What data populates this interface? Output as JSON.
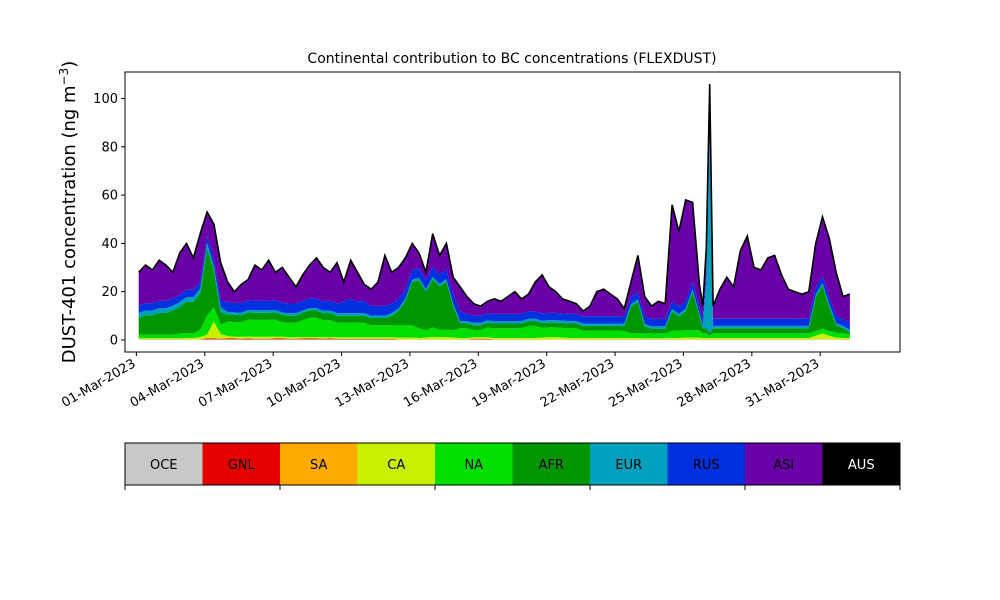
{
  "chart_data": {
    "type": "area",
    "stacked": true,
    "title": "Continental contribution to BC concentrations (FLEXDUST)",
    "ylabel": "DUST-401 concentration (ng m",
    "ylabel_sup": "−3",
    "ylabel_close": ")",
    "xlabel": "",
    "ylim": [
      -5,
      111
    ],
    "xlim": [
      -0.5,
      33.5
    ],
    "y_ticks": [
      0,
      20,
      40,
      60,
      80,
      100
    ],
    "x_ticks": [
      {
        "x": 0,
        "label": "01-Mar-2023"
      },
      {
        "x": 3,
        "label": "04-Mar-2023"
      },
      {
        "x": 6,
        "label": "07-Mar-2023"
      },
      {
        "x": 9,
        "label": "10-Mar-2023"
      },
      {
        "x": 12,
        "label": "13-Mar-2023"
      },
      {
        "x": 15,
        "label": "16-Mar-2023"
      },
      {
        "x": 18,
        "label": "19-Mar-2023"
      },
      {
        "x": 21,
        "label": "22-Mar-2023"
      },
      {
        "x": 24,
        "label": "25-Mar-2023"
      },
      {
        "x": 27,
        "label": "28-Mar-2023"
      },
      {
        "x": 30,
        "label": "31-Mar-2023"
      }
    ],
    "x_days": [
      0.1,
      0.4,
      0.7,
      1.0,
      1.3,
      1.6,
      1.9,
      2.2,
      2.5,
      2.8,
      3.1,
      3.4,
      3.7,
      4.0,
      4.3,
      4.6,
      4.9,
      5.2,
      5.5,
      5.8,
      6.1,
      6.4,
      6.7,
      7.0,
      7.3,
      7.6,
      7.9,
      8.2,
      8.5,
      8.8,
      9.1,
      9.4,
      9.7,
      10.0,
      10.3,
      10.6,
      10.9,
      11.2,
      11.5,
      11.8,
      12.1,
      12.4,
      12.7,
      13.0,
      13.3,
      13.6,
      13.9,
      14.2,
      14.5,
      14.8,
      15.1,
      15.4,
      15.7,
      16.0,
      16.3,
      16.6,
      16.9,
      17.2,
      17.5,
      17.8,
      18.1,
      18.4,
      18.7,
      19.0,
      19.3,
      19.6,
      19.9,
      20.2,
      20.5,
      20.8,
      21.1,
      21.4,
      21.7,
      22.0,
      22.3,
      22.6,
      22.9,
      23.2,
      23.5,
      23.8,
      24.1,
      24.4,
      24.7,
      24.85,
      25.0,
      25.15,
      25.3,
      25.6,
      25.9,
      26.2,
      26.5,
      26.8,
      27.1,
      27.4,
      27.7,
      28.0,
      28.3,
      28.6,
      28.9,
      29.2,
      29.5,
      29.8,
      30.1,
      30.4,
      30.7,
      31.0,
      31.3
    ],
    "totals": [
      28,
      31,
      29,
      33,
      31,
      28,
      36,
      40,
      34,
      44,
      53,
      48,
      32,
      24,
      20,
      23,
      25,
      31,
      29,
      33,
      28,
      30,
      26,
      22,
      27,
      31,
      34,
      30,
      28,
      32,
      24,
      33,
      28,
      23,
      21,
      24,
      35,
      28,
      30,
      34,
      40,
      36,
      28,
      44,
      35,
      40,
      26,
      22,
      18,
      15,
      14,
      16,
      17,
      16,
      18,
      20,
      17,
      19,
      24,
      27,
      22,
      20,
      17,
      16,
      15,
      12,
      14,
      20,
      21,
      19,
      17,
      13,
      24,
      35,
      18,
      14,
      16,
      15,
      56,
      45,
      58,
      57,
      23,
      14,
      38,
      106,
      14,
      21,
      26,
      22,
      37,
      43,
      30,
      29,
      34,
      35,
      27,
      21,
      20,
      19,
      20,
      40,
      51,
      42,
      28,
      18,
      19
    ],
    "series": [
      {
        "name": "OCE",
        "color": "#c8c8c8",
        "values": [
          0.2,
          0.2,
          0.2,
          0.2,
          0.2,
          0.2,
          0.2,
          0.2,
          0.2,
          0.2,
          0.2,
          0.2,
          0.2,
          0.2,
          0.2,
          0.2,
          0.2,
          0.2,
          0.2,
          0.2,
          0.2,
          0.2,
          0.2,
          0.2,
          0.2,
          0.2,
          0.2,
          0.2,
          0.2,
          0.2,
          0.2,
          0.2,
          0.2,
          0.2,
          0.2,
          0.2,
          0.2,
          0.2,
          0.2,
          0.2,
          0.2,
          0.2,
          0.2,
          0.2,
          0.2,
          0.2,
          0.2,
          0.2,
          0.2,
          0.2,
          0.2,
          0.2,
          0.2,
          0.2,
          0.2,
          0.2,
          0.2,
          0.2,
          0.2,
          0.2,
          0.2,
          0.2,
          0.2,
          0.2,
          0.2,
          0.2,
          0.2,
          0.2,
          0.2,
          0.2,
          0.2,
          0.2,
          0.2,
          0.2,
          0.2,
          0.2,
          0.2,
          0.2,
          0.2,
          0.2,
          0.2,
          0.2,
          0.2,
          0.2,
          0.2,
          0.2,
          0.2,
          0.2,
          0.2,
          0.2,
          0.2,
          0.2,
          0.2,
          0.2,
          0.2,
          0.2,
          0.2,
          0.2,
          0.2,
          0.2,
          0.2,
          0.2,
          0.2,
          0.2,
          0.2,
          0.2,
          0.2
        ]
      },
      {
        "name": "GNL",
        "color": "#e60000",
        "values": [
          0,
          0,
          0,
          0,
          0,
          0,
          0,
          0,
          0,
          0,
          0.5,
          0.4,
          0.3,
          0.4,
          0.4,
          0.3,
          0.4,
          0.3,
          0.3,
          0.3,
          0.4,
          0.4,
          0.3,
          0.3,
          0.4,
          0.4,
          0.4,
          0.3,
          0.4,
          0.3,
          0.3,
          0.3,
          0.3,
          0.3,
          0.3,
          0.3,
          0.3,
          0.3,
          0,
          0,
          0,
          0,
          0,
          0,
          0,
          0,
          0,
          0,
          0,
          0.3,
          0.3,
          0.3,
          0,
          0,
          0,
          0,
          0,
          0,
          0,
          0,
          0,
          0,
          0,
          0,
          0,
          0,
          0,
          0,
          0,
          0,
          0,
          0,
          0,
          0,
          0,
          0,
          0,
          0,
          0,
          0,
          0,
          0,
          0,
          0,
          0,
          0,
          0,
          0,
          0,
          0,
          0,
          0,
          0,
          0,
          0,
          0,
          0,
          0,
          0,
          0,
          0,
          0,
          0,
          0,
          0,
          0,
          0
        ]
      },
      {
        "name": "SA",
        "color": "#ffaa00",
        "values": [
          0,
          0,
          0,
          0,
          0,
          0,
          0,
          0,
          0,
          0,
          0,
          0,
          0,
          0,
          0,
          0,
          0,
          0,
          0,
          0,
          0,
          0,
          0,
          0,
          0,
          0,
          0,
          0,
          0,
          0,
          0,
          0,
          0,
          0,
          0,
          0,
          0,
          0,
          0,
          0,
          0,
          0,
          0,
          0,
          0,
          0,
          0,
          0,
          0,
          0,
          0,
          0,
          0,
          0,
          0,
          0,
          0,
          0,
          0,
          0,
          0,
          0,
          0,
          0,
          0,
          0,
          0,
          0,
          0,
          0,
          0,
          0,
          0,
          0,
          0,
          0,
          0,
          0,
          0,
          0,
          0,
          0,
          0,
          0,
          0,
          0,
          0,
          0,
          0,
          0,
          0,
          0,
          0,
          0,
          0,
          0,
          0,
          0,
          0,
          0,
          0,
          0,
          0,
          0,
          0,
          0,
          0
        ]
      },
      {
        "name": "CA",
        "color": "#c8f000",
        "values": [
          0.5,
          0.5,
          0.5,
          0.5,
          0.5,
          0.5,
          0.5,
          0.6,
          0.6,
          1.0,
          1.5,
          7.0,
          2.0,
          1.0,
          0.8,
          0.8,
          0.8,
          0.8,
          0.8,
          0.8,
          0.8,
          0.8,
          0.6,
          0.6,
          0.6,
          0.6,
          0.6,
          0.6,
          0.6,
          0.6,
          0.6,
          0.6,
          0.6,
          0.6,
          0.6,
          0.6,
          0.6,
          0.6,
          0.8,
          0.8,
          0.8,
          0.6,
          0.8,
          1.0,
          1.0,
          1.0,
          0.8,
          0.6,
          0.6,
          0.6,
          0.6,
          0.6,
          0.6,
          0.6,
          0.6,
          0.6,
          0.6,
          0.6,
          0.6,
          0.8,
          1.0,
          1.0,
          0.8,
          0.6,
          0.6,
          0.6,
          0.6,
          0.6,
          0.6,
          0.6,
          0.6,
          0.5,
          0.6,
          0.6,
          0.5,
          0.5,
          0.5,
          0.5,
          0.6,
          0.6,
          0.8,
          0.8,
          0.8,
          0.6,
          0.6,
          0.6,
          0.6,
          0.6,
          0.6,
          0.6,
          0.6,
          0.6,
          0.6,
          0.6,
          0.6,
          0.6,
          0.6,
          0.6,
          0.6,
          0.6,
          0.6,
          1.5,
          2.5,
          1.5,
          0.8,
          0.6,
          0.6
        ]
      },
      {
        "name": "NA",
        "color": "#00e000",
        "values": [
          1.5,
          1.5,
          1.5,
          1.5,
          1.5,
          1.5,
          2.0,
          2.0,
          2.0,
          3.0,
          8.0,
          6.0,
          4.0,
          6.0,
          6.0,
          6.0,
          7.0,
          7.0,
          7.0,
          7.0,
          7.0,
          6.0,
          6.0,
          6.0,
          7.0,
          8.0,
          8.0,
          7.0,
          7.0,
          6.0,
          6.0,
          6.0,
          6.0,
          6.0,
          5.0,
          5.0,
          5.0,
          5.0,
          5.0,
          5.0,
          5.0,
          4.0,
          3.0,
          4.0,
          3.0,
          3.0,
          3.0,
          4.0,
          4.0,
          3.0,
          3.0,
          4.0,
          4.0,
          4.0,
          4.0,
          4.0,
          4.0,
          5.0,
          5.0,
          4.0,
          4.0,
          4.0,
          4.0,
          4.0,
          4.0,
          3.0,
          3.0,
          3.0,
          3.0,
          3.0,
          3.0,
          3.0,
          2.0,
          2.0,
          2.0,
          2.0,
          2.0,
          2.0,
          3.0,
          3.0,
          3.0,
          3.0,
          3.0,
          2.0,
          2.0,
          1.0,
          2.0,
          2.0,
          2.0,
          2.0,
          2.0,
          2.0,
          2.0,
          2.0,
          2.0,
          2.0,
          2.0,
          2.0,
          2.0,
          2.0,
          2.0,
          2.0,
          2.0,
          2.0,
          2.0,
          2.0,
          1.5
        ]
      },
      {
        "name": "AFR",
        "color": "#009600",
        "values": [
          7,
          8,
          8,
          9,
          9,
          10,
          11,
          13,
          13,
          15,
          28,
          15,
          5,
          3,
          3,
          3,
          3,
          3,
          3,
          3,
          3,
          3,
          3,
          3,
          3,
          3,
          3,
          3,
          3,
          3,
          3,
          3,
          3,
          3,
          3,
          3,
          3,
          4,
          6,
          10,
          18,
          20,
          16,
          20,
          18,
          20,
          10,
          2,
          2,
          2,
          2,
          2,
          2,
          2,
          2,
          2,
          2,
          2,
          2,
          2,
          2,
          2,
          2,
          2,
          2,
          2,
          2,
          2,
          2,
          2,
          2,
          2,
          11,
          13,
          3,
          2,
          2,
          2,
          8,
          6,
          8,
          16,
          6,
          2,
          2,
          1,
          2,
          2,
          2,
          2,
          2,
          2,
          2,
          2,
          2,
          2,
          2,
          2,
          2,
          2,
          2,
          14,
          18,
          10,
          3,
          2,
          1
        ]
      },
      {
        "name": "EUR",
        "color": "#00a0bf",
        "values": [
          2,
          2,
          2,
          2,
          2,
          2,
          2,
          2,
          2,
          2,
          2,
          2,
          2,
          1,
          1,
          1,
          1,
          1,
          1,
          1,
          1,
          1,
          1,
          1,
          1,
          1,
          1,
          1,
          1,
          1,
          1,
          1,
          1,
          1,
          1,
          1,
          1,
          1,
          1,
          1,
          1,
          1,
          1,
          1,
          1,
          1,
          1,
          1,
          1,
          1,
          1,
          1,
          1,
          1,
          1,
          1,
          1,
          1,
          1,
          1,
          1,
          1,
          1,
          1,
          1,
          1,
          1,
          1,
          1,
          1,
          1,
          1,
          1,
          1,
          1,
          1,
          1,
          1,
          1,
          1,
          1,
          1,
          1,
          1,
          20,
          80,
          1,
          1,
          1,
          1,
          1,
          1,
          1,
          1,
          1,
          1,
          1,
          1,
          1,
          1,
          1,
          1,
          1,
          1,
          1,
          1,
          1
        ]
      },
      {
        "name": "RUS",
        "color": "#0030e0",
        "values": [
          3,
          3,
          3,
          3,
          3,
          3,
          3,
          3,
          3,
          3,
          3,
          3,
          3,
          4,
          4,
          4,
          4,
          4,
          4,
          4,
          4,
          4,
          4,
          4,
          4,
          4,
          4,
          4,
          4,
          4,
          5,
          6,
          5,
          5,
          4,
          4,
          4,
          4,
          4,
          4,
          4,
          4,
          4,
          4,
          4,
          4,
          4,
          4,
          3,
          3,
          3,
          3,
          3,
          3,
          3,
          3,
          3,
          3,
          3,
          3,
          3,
          3,
          3,
          3,
          3,
          3,
          3,
          3,
          3,
          3,
          3,
          3,
          3,
          3,
          3,
          3,
          3,
          3,
          3,
          3,
          3,
          3,
          3,
          3,
          3,
          3,
          3,
          3,
          3,
          3,
          3,
          3,
          3,
          3,
          3,
          3,
          3,
          3,
          3,
          3,
          3,
          3,
          3,
          3,
          3,
          3,
          3
        ]
      },
      {
        "name": "ASI",
        "color": "#6a00a8",
        "values": [
          14,
          16,
          14,
          17,
          15,
          11,
          18,
          19,
          13,
          20,
          10,
          15,
          16,
          8,
          5,
          8,
          9,
          15,
          13,
          17,
          12,
          15,
          11,
          7,
          11,
          14,
          17,
          14,
          12,
          17,
          8,
          16,
          12,
          7,
          7,
          11,
          21,
          14,
          13,
          12,
          10,
          5,
          2,
          13,
          8,
          10,
          7,
          7,
          3,
          3,
          3,
          3,
          4,
          4,
          6,
          8,
          4,
          6,
          10,
          14,
          9,
          7,
          5,
          4,
          3,
          2,
          4,
          10,
          11,
          9,
          7,
          3,
          4,
          12,
          6,
          3,
          5,
          4,
          38,
          29,
          40,
          31,
          7,
          4,
          7,
          20,
          5,
          11,
          16,
          12,
          27,
          33,
          20,
          19,
          24,
          25,
          17,
          11,
          10,
          9,
          10,
          19,
          23,
          25,
          18,
          9,
          11
        ]
      },
      {
        "name": "AUS",
        "color": "#000000",
        "values": [
          0,
          0,
          0,
          0,
          0,
          0,
          0,
          0,
          0,
          0,
          0,
          0,
          0,
          0,
          0,
          0,
          0,
          0,
          0,
          0,
          0,
          0,
          0,
          0,
          0,
          0,
          0,
          0,
          0,
          0,
          0,
          0,
          0,
          0,
          0,
          0,
          0,
          0,
          0,
          0,
          0,
          0,
          0,
          0,
          0,
          0,
          0,
          0,
          0,
          0,
          0,
          0,
          0,
          0,
          0,
          0,
          0,
          0,
          0,
          0,
          0,
          0,
          0,
          0,
          0,
          0,
          0,
          0,
          0,
          0,
          0,
          0,
          0,
          0,
          0,
          0,
          0,
          0,
          0,
          0,
          0,
          0,
          0,
          0,
          0,
          0,
          0,
          0,
          0,
          0,
          0,
          0,
          0,
          0,
          0,
          0,
          0,
          0,
          0,
          0,
          0,
          0,
          0,
          0,
          0,
          0,
          0
        ]
      }
    ]
  },
  "legend": {
    "items": [
      {
        "label": "OCE",
        "color": "#c8c8c8"
      },
      {
        "label": "GNL",
        "color": "#e60000"
      },
      {
        "label": "SA",
        "color": "#ffaa00"
      },
      {
        "label": "CA",
        "color": "#c8f000"
      },
      {
        "label": "NA",
        "color": "#00e000"
      },
      {
        "label": "AFR",
        "color": "#009600"
      },
      {
        "label": "EUR",
        "color": "#00a0bf"
      },
      {
        "label": "RUS",
        "color": "#0030e0"
      },
      {
        "label": "ASI",
        "color": "#6a00a8"
      },
      {
        "label": "AUS",
        "color": "#000000"
      }
    ]
  }
}
